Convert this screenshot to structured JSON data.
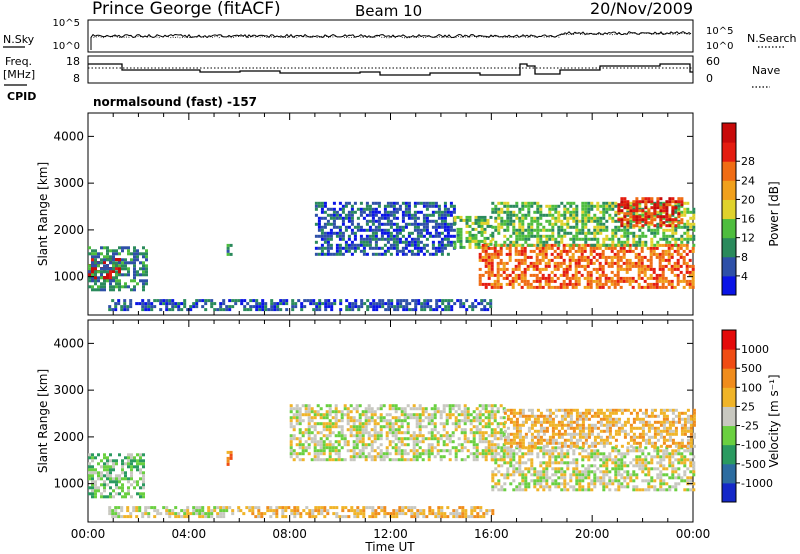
{
  "header": {
    "station": "Prince George (fitACF)",
    "beam": "Beam 10",
    "date": "20/Nov/2009"
  },
  "top_panels": {
    "nsky_label": "N.Sky",
    "nsky_ticks": [
      "10^5",
      "10^0"
    ],
    "nsearch_label": "N.Search",
    "nsearch_ticks": [
      "10^5",
      "10^0"
    ],
    "freq_label": "Freq.",
    "freq_unit": "[MHz]",
    "freq_ticks": [
      "18",
      "8"
    ],
    "nave_label": "Nave",
    "nave_ticks": [
      "60",
      "0"
    ],
    "cpid_label": "CPID",
    "cpid_value": "normalsound (fast) -157"
  },
  "chart_data": [
    {
      "type": "heatmap",
      "name": "power",
      "xlabel": "",
      "ylabel": "Slant Range [km]",
      "x_range": [
        0,
        24
      ],
      "ylim": [
        180,
        4500
      ],
      "yticks": [
        "1000",
        "2000",
        "3000",
        "4000"
      ],
      "colorbar_label": "Power [dB]",
      "colorbar_ticks": [
        "4",
        "8",
        "12",
        "16",
        "20",
        "24",
        "28"
      ],
      "colorbar_colors": [
        "#0a14e6",
        "#2e50a8",
        "#2a8a5c",
        "#4ebd3e",
        "#e0d22c",
        "#f0a01c",
        "#f06c14",
        "#e41c10",
        "#c80a0a"
      ],
      "regions": [
        {
          "t0": 0.0,
          "t1": 1.3,
          "r0": 900,
          "r1": 1400,
          "level": 8
        },
        {
          "t0": 0.0,
          "t1": 2.3,
          "r0": 700,
          "r1": 1650,
          "level": 2
        },
        {
          "t0": 0.8,
          "t1": 16.0,
          "r0": 300,
          "r1": 520,
          "level": 1
        },
        {
          "t0": 5.5,
          "t1": 5.7,
          "r0": 1400,
          "r1": 1700,
          "level": 2
        },
        {
          "t0": 9.0,
          "t1": 14.5,
          "r0": 1500,
          "r1": 2600,
          "level": 1
        },
        {
          "t0": 14.5,
          "t1": 16.0,
          "r0": 1600,
          "r1": 2300,
          "level": 3
        },
        {
          "t0": 15.5,
          "t1": 24.0,
          "r0": 800,
          "r1": 1700,
          "level": 6
        },
        {
          "t0": 16.0,
          "t1": 24.0,
          "r0": 1700,
          "r1": 2600,
          "level": 3
        },
        {
          "t0": 21.0,
          "t1": 23.5,
          "r0": 2100,
          "r1": 2700,
          "level": 7
        }
      ]
    },
    {
      "type": "heatmap",
      "name": "velocity",
      "xlabel": "Time UT",
      "ylabel": "Slant Range [km]",
      "x_range": [
        0,
        24
      ],
      "ylim": [
        180,
        4500
      ],
      "xticks": [
        "00:00",
        "04:00",
        "08:00",
        "12:00",
        "16:00",
        "20:00",
        "00:00"
      ],
      "yticks": [
        "1000",
        "2000",
        "3000",
        "4000"
      ],
      "colorbar_label": "Velocity [m s⁻¹]",
      "colorbar_ticks": [
        "1000",
        "500",
        "100",
        "25",
        "-25",
        "-100",
        "-500",
        "-1000"
      ],
      "colorbar_colors": [
        "#1428c8",
        "#2c6ca0",
        "#2a9a60",
        "#6ad040",
        "#c8c8c0",
        "#f0b428",
        "#f08c1c",
        "#f04c14",
        "#e40a0a"
      ],
      "regions": [
        {
          "t0": 0.0,
          "t1": 2.2,
          "r0": 700,
          "r1": 1650,
          "level": 3
        },
        {
          "t0": 0.8,
          "t1": 6.0,
          "r0": 300,
          "r1": 520,
          "level": 4
        },
        {
          "t0": 6.0,
          "t1": 16.0,
          "r0": 300,
          "r1": 520,
          "level": 5
        },
        {
          "t0": 5.5,
          "t1": 5.7,
          "r0": 1400,
          "r1": 1700,
          "level": 6
        },
        {
          "t0": 8.0,
          "t1": 16.5,
          "r0": 1500,
          "r1": 2700,
          "level": 4
        },
        {
          "t0": 16.0,
          "t1": 24.0,
          "r0": 900,
          "r1": 1800,
          "level": 4
        },
        {
          "t0": 16.5,
          "t1": 24.0,
          "r0": 1800,
          "r1": 2600,
          "level": 5
        }
      ]
    }
  ]
}
